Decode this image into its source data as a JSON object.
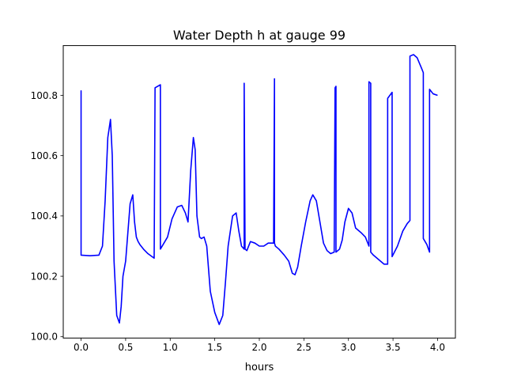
{
  "chart_data": {
    "type": "line",
    "title": "Water Depth h at gauge 99",
    "xlabel": "hours",
    "ylabel": "",
    "xlim": [
      -0.2,
      4.2
    ],
    "ylim": [
      99.995,
      100.965
    ],
    "x_ticks": [
      0.0,
      0.5,
      1.0,
      1.5,
      2.0,
      2.5,
      3.0,
      3.5,
      4.0
    ],
    "x_tick_labels": [
      "0.0",
      "0.5",
      "1.0",
      "1.5",
      "2.0",
      "2.5",
      "3.0",
      "3.5",
      "4.0"
    ],
    "y_ticks": [
      100.0,
      100.2,
      100.4,
      100.6,
      100.8
    ],
    "y_tick_labels": [
      "100.0",
      "100.2",
      "100.4",
      "100.6",
      "100.8"
    ],
    "grid": false,
    "legend": "none",
    "series": [
      {
        "color": "#0000ff",
        "x": [
          0.0,
          0.0,
          0.0,
          0.1,
          0.2,
          0.24,
          0.27,
          0.3,
          0.33,
          0.35,
          0.37,
          0.4,
          0.43,
          0.45,
          0.47,
          0.5,
          0.55,
          0.58,
          0.6,
          0.62,
          0.64,
          0.66,
          0.7,
          0.75,
          0.82,
          0.83,
          0.83,
          0.89,
          0.89,
          0.93,
          0.97,
          1.02,
          1.08,
          1.13,
          1.17,
          1.2,
          1.23,
          1.26,
          1.28,
          1.3,
          1.33,
          1.35,
          1.38,
          1.41,
          1.45,
          1.5,
          1.55,
          1.59,
          1.62,
          1.65,
          1.7,
          1.74,
          1.77,
          1.8,
          1.83,
          1.83,
          1.84,
          1.86,
          1.9,
          1.95,
          2.0,
          2.05,
          2.1,
          2.16,
          2.17,
          2.17,
          2.18,
          2.22,
          2.28,
          2.33,
          2.37,
          2.4,
          2.43,
          2.47,
          2.52,
          2.57,
          2.6,
          2.64,
          2.68,
          2.72,
          2.76,
          2.8,
          2.84,
          2.85,
          2.86,
          2.86,
          2.9,
          2.93,
          2.96,
          3.0,
          3.04,
          3.08,
          3.14,
          3.19,
          3.23,
          3.23,
          3.25,
          3.25,
          3.28,
          3.34,
          3.4,
          3.44,
          3.44,
          3.49,
          3.49,
          3.55,
          3.61,
          3.66,
          3.69,
          3.69,
          3.73,
          3.77,
          3.82,
          3.84,
          3.84,
          3.88,
          3.91,
          3.91,
          3.95,
          4.0
        ],
        "y": [
          100.27,
          100.815,
          100.27,
          100.268,
          100.27,
          100.3,
          100.45,
          100.66,
          100.72,
          100.6,
          100.25,
          100.07,
          100.045,
          100.1,
          100.2,
          100.25,
          100.44,
          100.47,
          100.38,
          100.33,
          100.315,
          100.305,
          100.29,
          100.275,
          100.26,
          100.82,
          100.825,
          100.835,
          100.29,
          100.31,
          100.33,
          100.39,
          100.43,
          100.435,
          100.41,
          100.38,
          100.55,
          100.66,
          100.62,
          100.4,
          100.33,
          100.325,
          100.33,
          100.3,
          100.15,
          100.08,
          100.04,
          100.07,
          100.18,
          100.3,
          100.4,
          100.41,
          100.35,
          100.3,
          100.29,
          100.84,
          100.29,
          100.285,
          100.315,
          100.31,
          100.3,
          100.3,
          100.31,
          100.31,
          100.855,
          100.31,
          100.3,
          100.29,
          100.27,
          100.25,
          100.21,
          100.205,
          100.23,
          100.3,
          100.38,
          100.45,
          100.47,
          100.45,
          100.38,
          100.31,
          100.285,
          100.275,
          100.28,
          100.825,
          100.83,
          100.28,
          100.29,
          100.32,
          100.38,
          100.425,
          100.41,
          100.36,
          100.345,
          100.33,
          100.3,
          100.845,
          100.84,
          100.28,
          100.27,
          100.255,
          100.24,
          100.24,
          100.79,
          100.81,
          100.265,
          100.3,
          100.35,
          100.375,
          100.385,
          100.93,
          100.935,
          100.925,
          100.89,
          100.875,
          100.325,
          100.305,
          100.28,
          100.82,
          100.805,
          100.8
        ]
      }
    ]
  }
}
